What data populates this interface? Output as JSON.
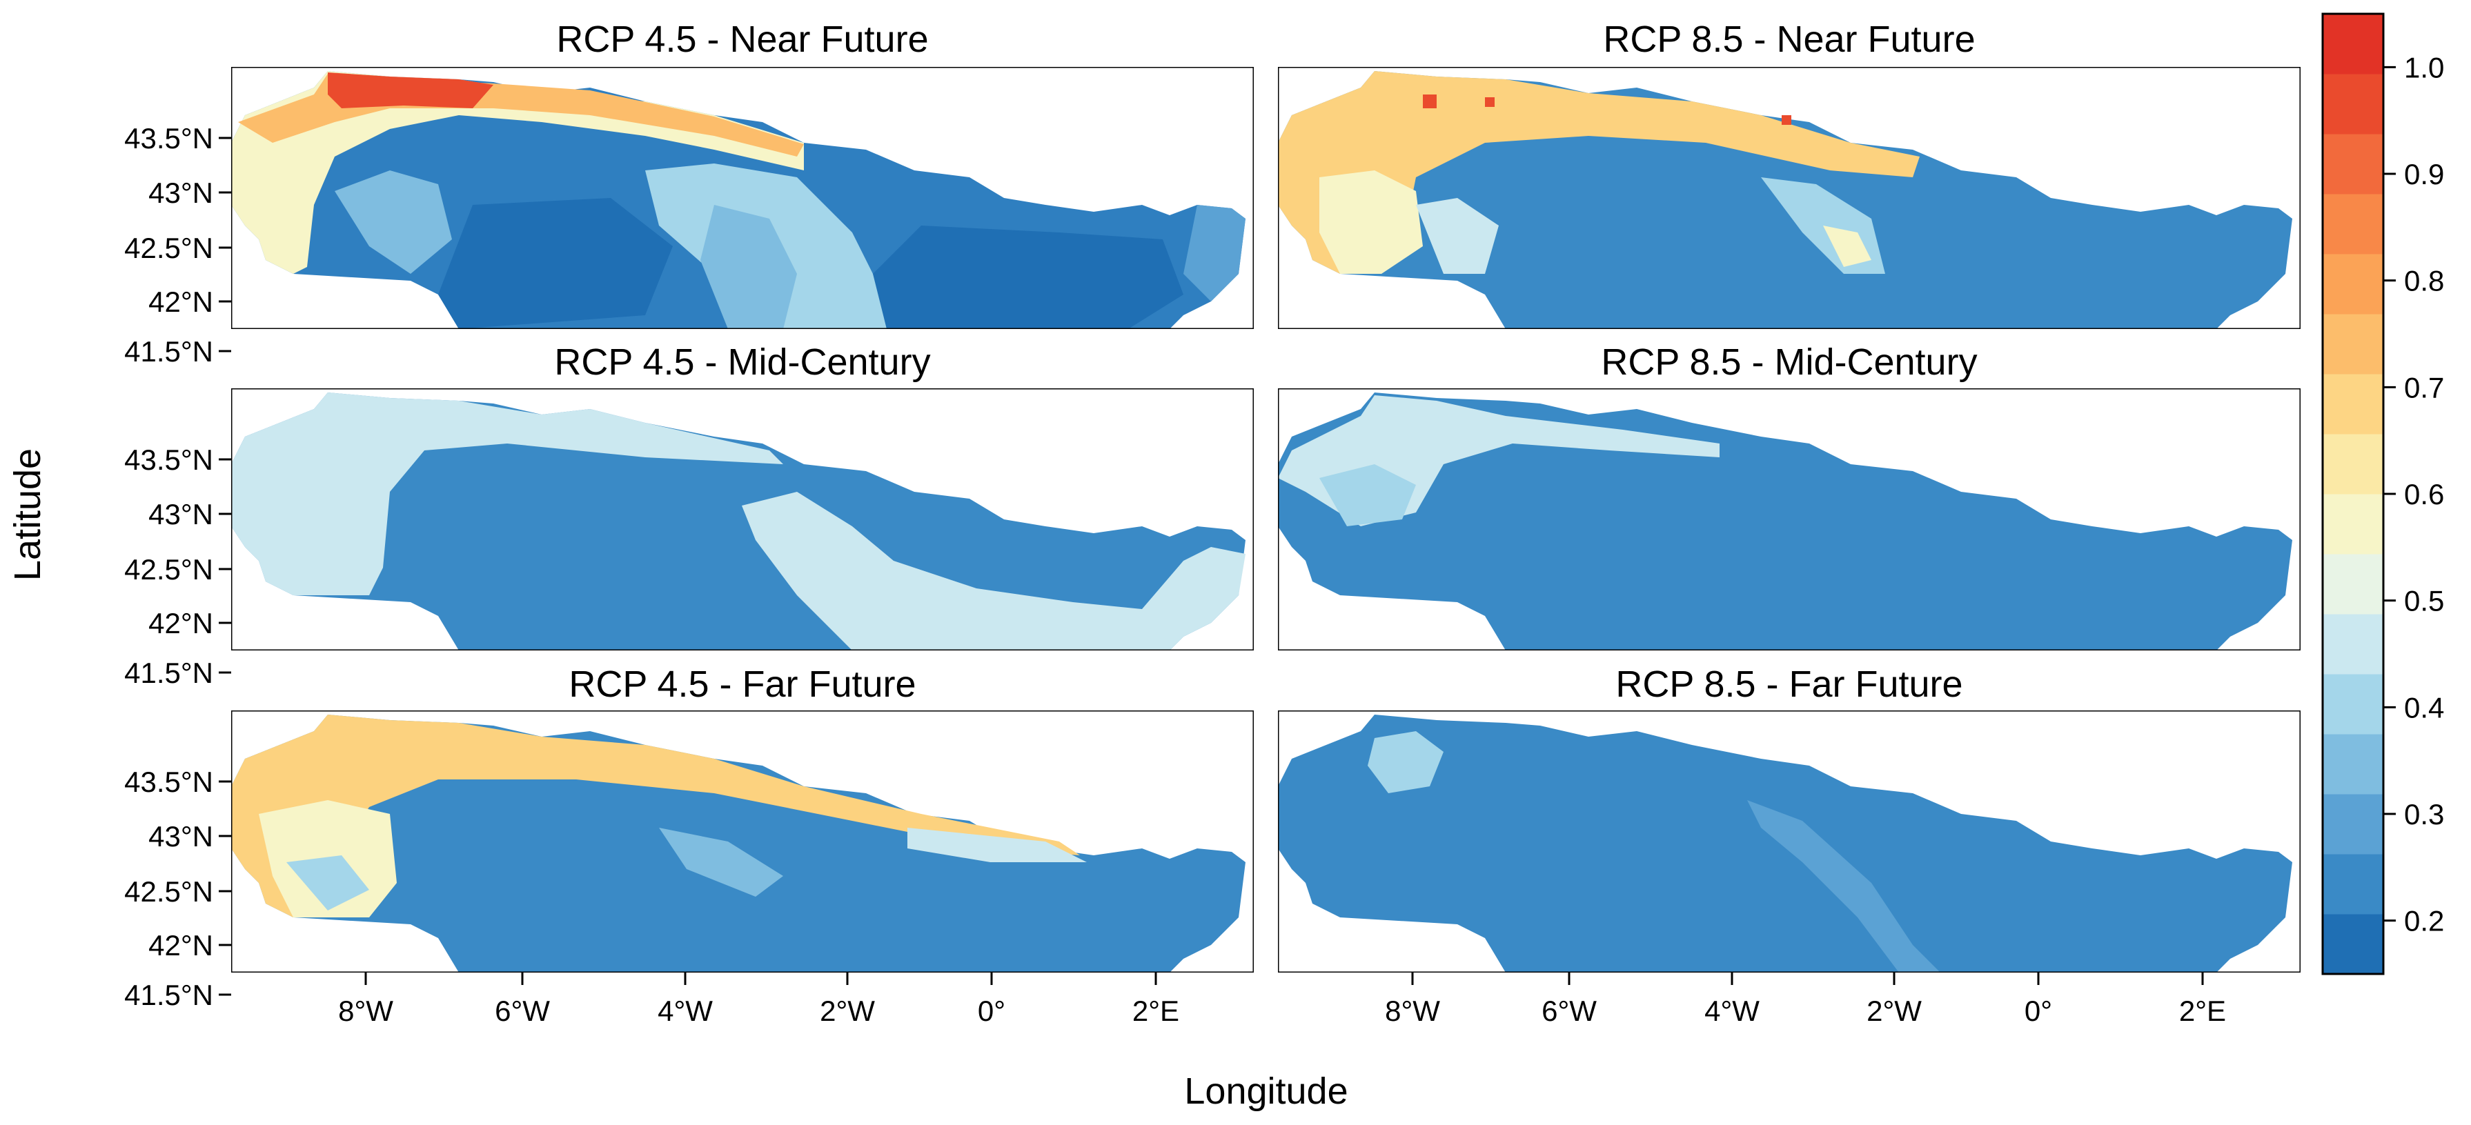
{
  "x_axis": {
    "label": "Longitude",
    "ticks": [
      "8°W",
      "6°W",
      "4°W",
      "2°W",
      "0°",
      "2°E"
    ]
  },
  "y_axis": {
    "label": "Latitude",
    "ticks": [
      "43.5°N",
      "43°N",
      "42.5°N",
      "42°N",
      "41.5°N"
    ]
  },
  "legend": {
    "ticks": [
      "1.0",
      "0.9",
      "0.8",
      "0.7",
      "0.6",
      "0.5",
      "0.4",
      "0.3",
      "0.2"
    ],
    "colors": [
      "#1f6fb4",
      "#3a8ac6",
      "#5ba2d4",
      "#7fbde0",
      "#a4d6ea",
      "#cbe8f0",
      "#e8f4e6",
      "#f7f5c8",
      "#fbe9a6",
      "#fdd584",
      "#fcbd6b",
      "#fba356",
      "#f88848",
      "#f26a3c",
      "#ea4b2d",
      "#e23326"
    ]
  },
  "panels": [
    {
      "title": "RCP 4.5 - Near Future",
      "scenario": "RCP 4.5",
      "period": "Near Future"
    },
    {
      "title": "RCP 8.5 - Near Future",
      "scenario": "RCP 8.5",
      "period": "Near Future"
    },
    {
      "title": "RCP 4.5 - Mid-Century",
      "scenario": "RCP 4.5",
      "period": "Mid-Century"
    },
    {
      "title": "RCP 8.5 - Mid-Century",
      "scenario": "RCP 8.5",
      "period": "Mid-Century"
    },
    {
      "title": "RCP 4.5 - Far Future",
      "scenario": "RCP 4.5",
      "period": "Far Future"
    },
    {
      "title": "RCP 8.5 - Far Future",
      "scenario": "RCP 8.5",
      "period": "Far Future"
    }
  ]
}
